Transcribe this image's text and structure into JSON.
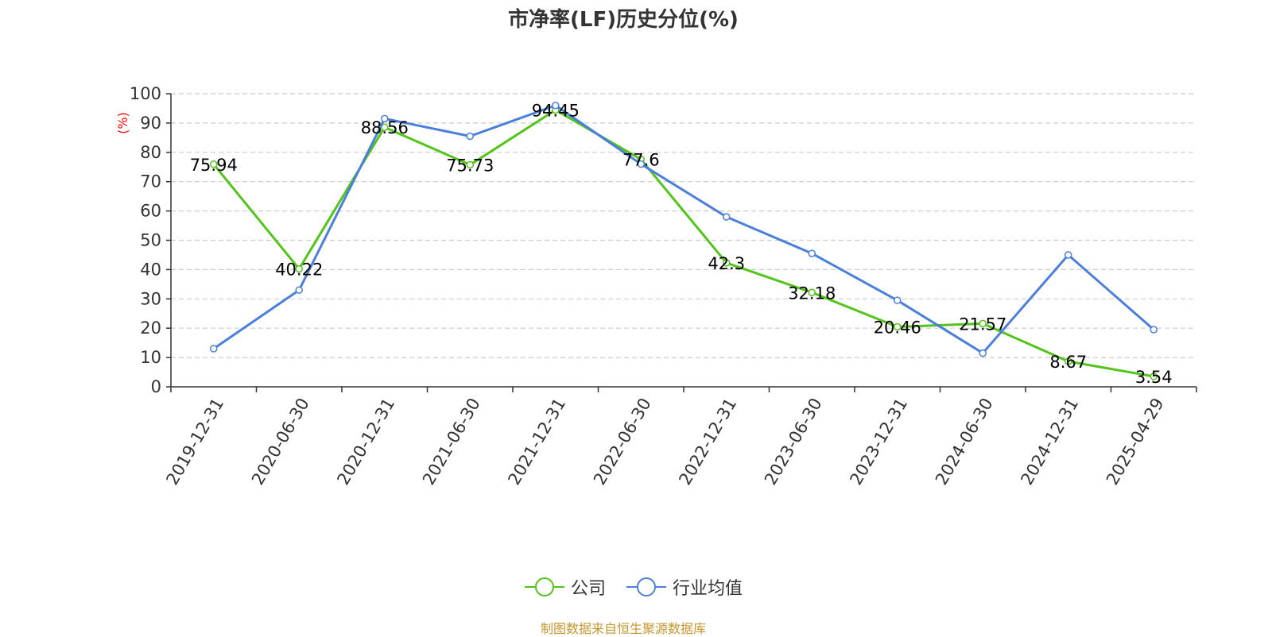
{
  "title": "市净率(LF)历史分位(%)",
  "source": "制图数据来自恒生聚源数据库",
  "colors": {
    "company": "#52c41a",
    "industry": "#4a7fdb",
    "ylabel": "#ff0000",
    "grid": "#cccccc",
    "axis": "#333333",
    "source": "#c8962f"
  },
  "chart_data": {
    "type": "line",
    "title": "市净率(LF)历史分位(%)",
    "xlabel": "",
    "ylabel": "(%)",
    "ylim": [
      0,
      100
    ],
    "yticks": [
      0,
      10,
      20,
      30,
      40,
      50,
      60,
      70,
      80,
      90,
      100
    ],
    "grid": true,
    "legend_position": "bottom",
    "categories": [
      "2019-12-31",
      "2020-06-30",
      "2020-12-31",
      "2021-06-30",
      "2021-12-31",
      "2022-06-30",
      "2022-12-31",
      "2023-06-30",
      "2023-12-31",
      "2024-06-30",
      "2024-12-31",
      "2025-04-29"
    ],
    "series": [
      {
        "name": "公司",
        "color": "#52c41a",
        "values": [
          75.94,
          40.22,
          88.56,
          75.73,
          94.45,
          77.6,
          42.3,
          32.18,
          20.46,
          21.57,
          8.67,
          3.54
        ],
        "labels": [
          "75.94",
          "40.22",
          "88.56",
          "75.73",
          "94.45",
          "77.6",
          "42.3",
          "32.18",
          "20.46",
          "21.57",
          "8.67",
          "3.54"
        ]
      },
      {
        "name": "行业均值",
        "color": "#4a7fdb",
        "values": [
          13,
          33,
          91.5,
          85.5,
          96,
          76,
          58,
          45.5,
          29.5,
          11.5,
          45,
          19.5
        ]
      }
    ]
  }
}
